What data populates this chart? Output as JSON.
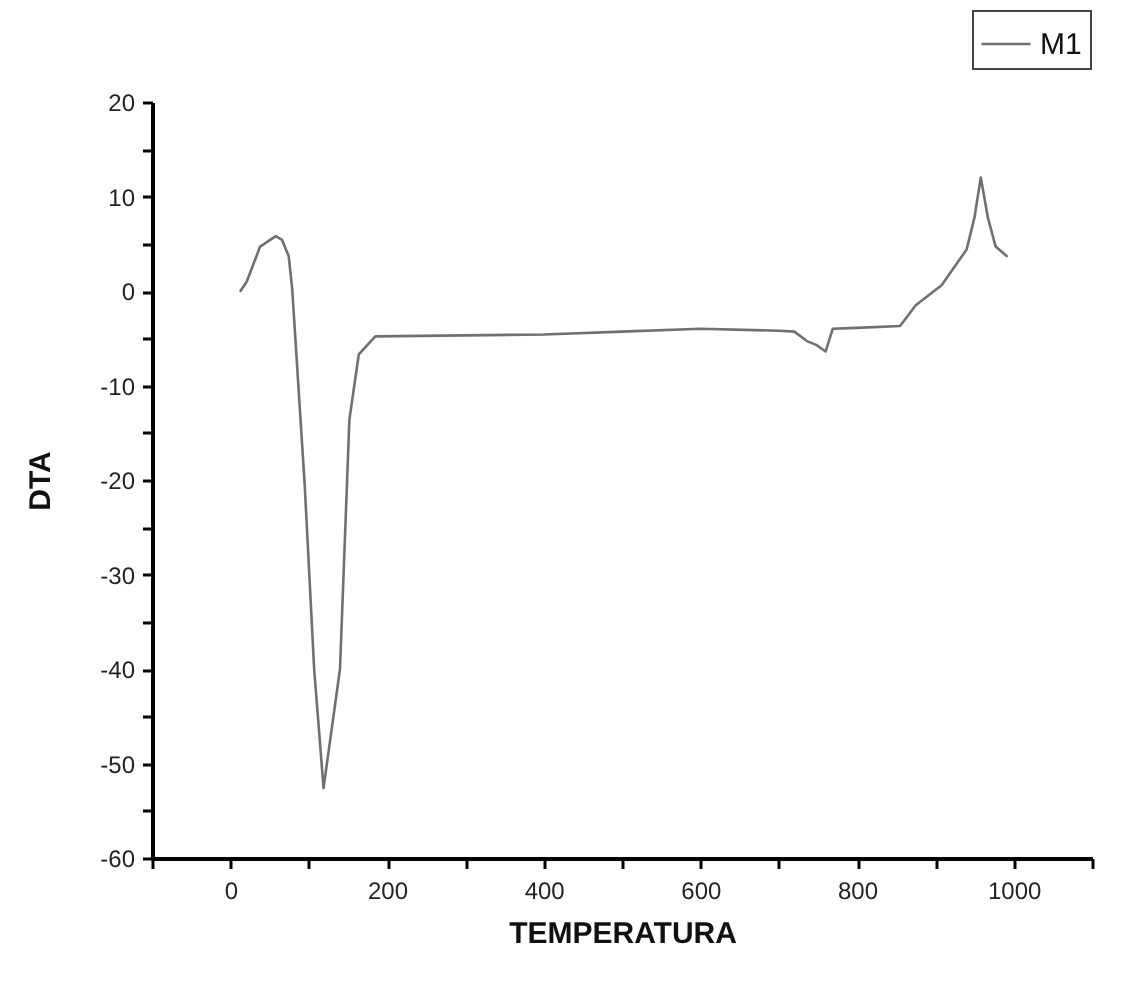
{
  "chart_data": {
    "type": "line",
    "xlabel": "TEMPERATURA",
    "ylabel": "DTA",
    "xlim": [
      -100,
      1100
    ],
    "ylim": [
      -60,
      20
    ],
    "xticks": [
      {
        "value": -100,
        "label": null
      },
      0,
      {
        "value": 100,
        "label": null
      },
      200,
      {
        "value": 300,
        "label": null
      },
      400,
      {
        "value": 500,
        "label": null
      },
      600,
      {
        "value": 700,
        "label": null
      },
      800,
      {
        "value": 900,
        "label": null
      },
      1000,
      {
        "value": 1100,
        "label": null
      }
    ],
    "yticks": [
      -60,
      {
        "value": -55,
        "label": null
      },
      -50,
      {
        "value": -45,
        "label": null
      },
      -40,
      {
        "value": -35,
        "label": null
      },
      -30,
      {
        "value": -25,
        "label": null
      },
      -20,
      {
        "value": -15,
        "label": null
      },
      -10,
      {
        "value": -5,
        "label": null
      },
      0,
      {
        "value": 5,
        "label": null
      },
      10,
      {
        "value": 15,
        "label": null
      },
      20
    ],
    "legend": "top right",
    "grid": false,
    "marker": "none",
    "line_style": "solid",
    "series": [
      {
        "name": "M1",
        "color": "#707070",
        "x": [
          13,
          21,
          38,
          58,
          66,
          74.5,
          79,
          95,
          107,
          119,
          140,
          152,
          164,
          185,
          300,
          400,
          500,
          600,
          700,
          720,
          736,
          748,
          760,
          769,
          800,
          855,
          875,
          908,
          940,
          950,
          958,
          967,
          977,
          991
        ],
        "values": [
          0,
          1,
          4.7,
          5.8,
          5.4,
          3.7,
          0.2,
          -20.6,
          -40,
          -52.6,
          -40,
          -13.6,
          -6.7,
          -4.8,
          -4.7,
          -4.6,
          -4.3,
          -4.0,
          -4.2,
          -4.3,
          -5.3,
          -5.7,
          -6.4,
          -4.0,
          -3.9,
          -3.7,
          -1.5,
          0.6,
          4.4,
          7.8,
          12.0,
          7.8,
          4.7,
          3.7
        ]
      }
    ]
  }
}
